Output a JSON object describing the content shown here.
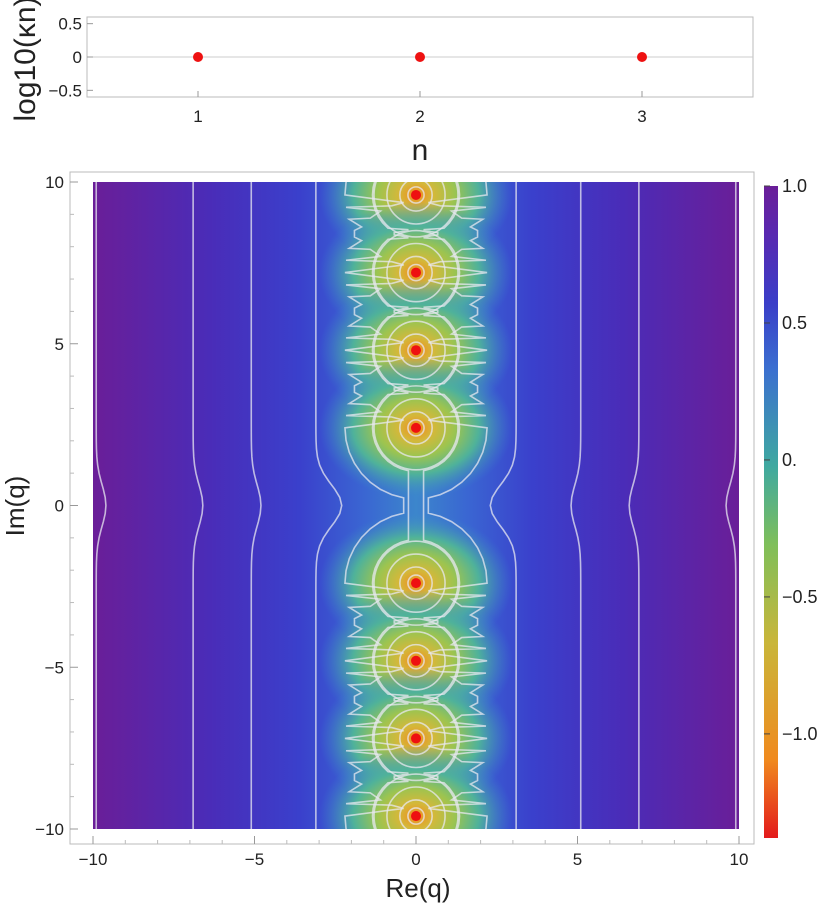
{
  "chart_data": [
    {
      "type": "scatter",
      "ylabel": "log10(κn)",
      "xlabel": "n",
      "xlim": [
        0.5,
        3.5
      ],
      "ylim": [
        -0.6,
        0.6
      ],
      "x_ticks": [
        "1",
        "2",
        "3"
      ],
      "y_ticks": [
        "0.5",
        "0",
        "−0.5"
      ],
      "grid": "horizontal line at 0",
      "series": [
        {
          "x": [
            1,
            2,
            3
          ],
          "y": [
            0,
            0,
            0
          ],
          "color": "#ee1111"
        }
      ]
    },
    {
      "type": "heatmap",
      "xlabel": "Re(q)",
      "ylabel": "Im(q)",
      "xlim": [
        -10,
        10
      ],
      "ylim": [
        -10,
        10
      ],
      "x_ticks": [
        "−10",
        "−5",
        "0",
        "5",
        "10"
      ],
      "y_ticks": [
        "10",
        "5",
        "0",
        "−5",
        "−10"
      ],
      "points": {
        "x": [
          0,
          0,
          0,
          0,
          0,
          0,
          0,
          0
        ],
        "y": [
          9.6,
          7.2,
          4.8,
          2.4,
          -2.4,
          -4.8,
          -7.2,
          -9.6
        ],
        "color": "#ee1111"
      },
      "colorbar": {
        "range": [
          -1.38,
          1.0
        ],
        "ticks": [
          "1.0",
          "0.5",
          "0.",
          "−0.5",
          "−1.0"
        ],
        "colors": [
          "#e31a1c",
          "#f08a1e",
          "#c9b63a",
          "#7fbf5a",
          "#3fa9a0",
          "#3b6fd0",
          "#3a3ec8",
          "#5a28b0",
          "#6a1e98"
        ]
      }
    }
  ]
}
